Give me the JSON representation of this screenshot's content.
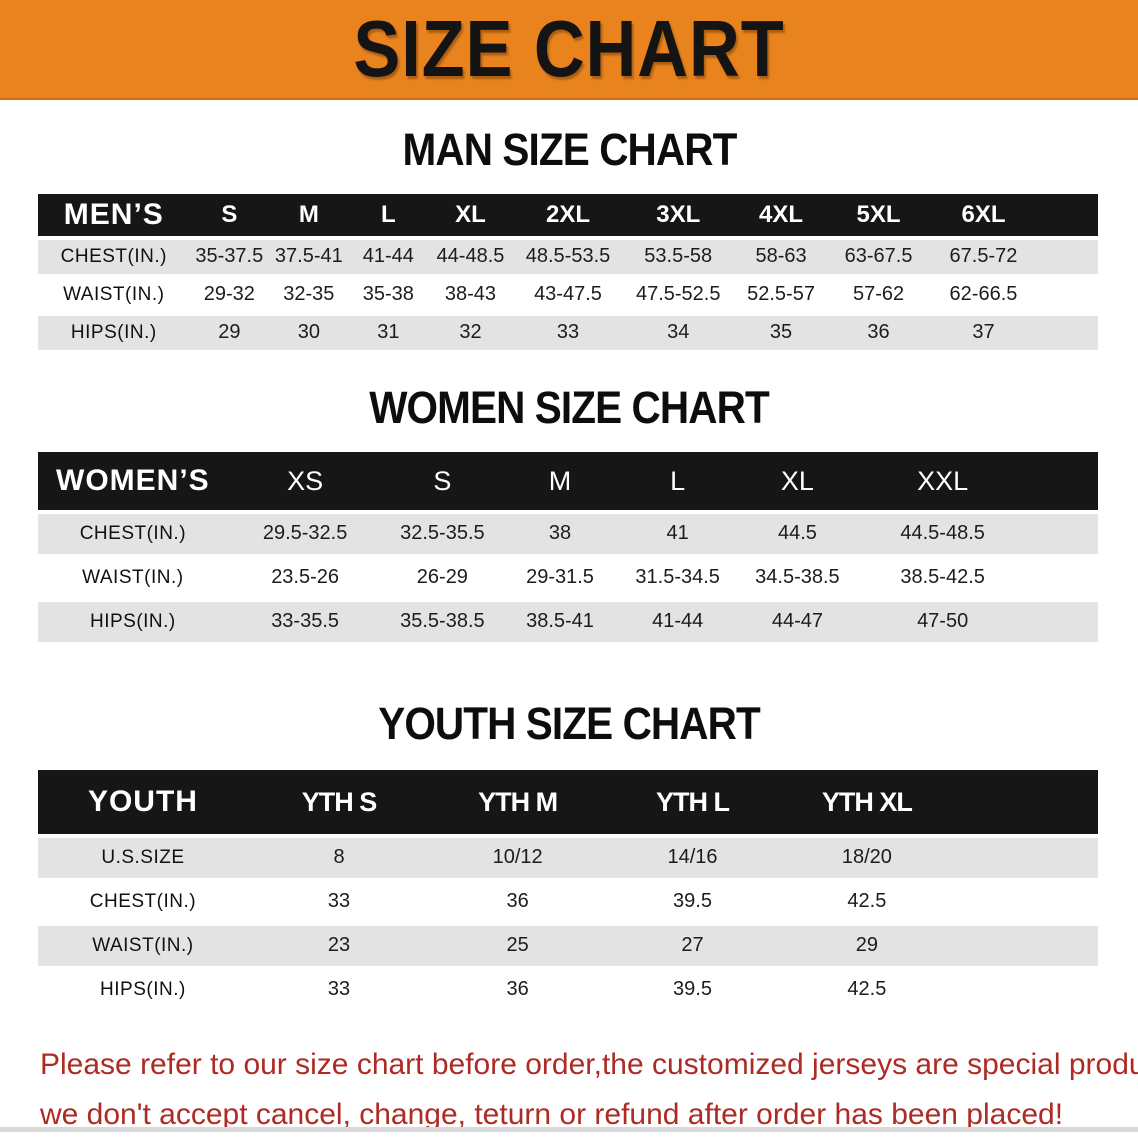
{
  "banner": {
    "title": "SIZE CHART"
  },
  "colors": {
    "banner_bg": "#E8831D",
    "header_band_bg": "#161616",
    "row_stripe": "#E3E3E3",
    "note_text": "#AD2B24"
  },
  "sections": {
    "men": {
      "heading": "MAN SIZE CHART",
      "table": {
        "header": [
          "MEN’S",
          "S",
          "M",
          "L",
          "XL",
          "2XL",
          "3XL",
          "4XL",
          "5XL",
          "6XL"
        ],
        "rows": [
          {
            "label": "CHEST(IN.)",
            "values": [
              "35-37.5",
              "37.5-41",
              "41-44",
              "44-48.5",
              "48.5-53.5",
              "53.5-58",
              "58-63",
              "63-67.5",
              "67.5-72"
            ]
          },
          {
            "label": "WAIST(IN.)",
            "values": [
              "29-32",
              "32-35",
              "35-38",
              "38-43",
              "43-47.5",
              "47.5-52.5",
              "52.5-57",
              "57-62",
              "62-66.5"
            ]
          },
          {
            "label": "HIPS(IN.)",
            "values": [
              "29",
              "30",
              "31",
              "32",
              "33",
              "34",
              "35",
              "36",
              "37"
            ]
          }
        ]
      }
    },
    "women": {
      "heading": "WOMEN SIZE CHART",
      "table": {
        "header": [
          "WOMEN’S",
          "XS",
          "S",
          "M",
          "L",
          "XL",
          "XXL"
        ],
        "rows": [
          {
            "label": "CHEST(IN.)",
            "values": [
              "29.5-32.5",
              "32.5-35.5",
              "38",
              "41",
              "44.5",
              "44.5-48.5"
            ]
          },
          {
            "label": "WAIST(IN.)",
            "values": [
              "23.5-26",
              "26-29",
              "29-31.5",
              "31.5-34.5",
              "34.5-38.5",
              "38.5-42.5"
            ]
          },
          {
            "label": "HIPS(IN.)",
            "values": [
              "33-35.5",
              "35.5-38.5",
              "38.5-41",
              "41-44",
              "44-47",
              "47-50"
            ]
          }
        ]
      }
    },
    "youth": {
      "heading": "YOUTH SIZE CHART",
      "table": {
        "header": [
          "YOUTH",
          "YTH S",
          "YTH M",
          "YTH L",
          "YTH XL"
        ],
        "rows": [
          {
            "label": "U.S.SIZE",
            "values": [
              "8",
              "10/12",
              "14/16",
              "18/20"
            ]
          },
          {
            "label": "CHEST(IN.)",
            "values": [
              "33",
              "36",
              "39.5",
              "42.5"
            ]
          },
          {
            "label": "WAIST(IN.)",
            "values": [
              "23",
              "25",
              "27",
              "29"
            ]
          },
          {
            "label": "HIPS(IN.)",
            "values": [
              "33",
              "36",
              "39.5",
              "42.5"
            ]
          }
        ]
      }
    }
  },
  "footer": {
    "line1": "Please refer to our size chart before order,the customized jerseys are special products,",
    "line2": "we don't accept cancel, change, teturn or refund after order has been placed!"
  }
}
